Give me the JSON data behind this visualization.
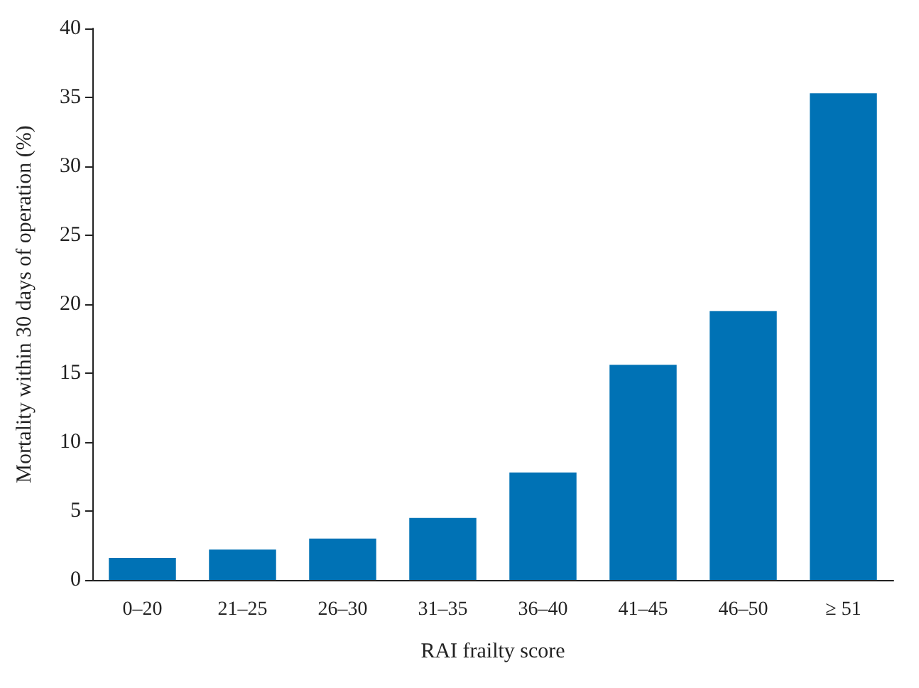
{
  "chart_data": {
    "type": "bar",
    "xlabel": "RAI frailty score",
    "ylabel": "Mortality within 30 days of operation (%)",
    "categories": [
      "0–20",
      "21–25",
      "26–30",
      "31–35",
      "36–40",
      "41–45",
      "46–50",
      "≥ 51"
    ],
    "values": [
      1.6,
      2.2,
      3.0,
      4.5,
      7.8,
      15.6,
      19.5,
      35.3
    ],
    "color": "#0072b5",
    "ylim": [
      0,
      40
    ],
    "yticks": [
      0,
      5,
      10,
      15,
      20,
      25,
      30,
      35,
      40
    ],
    "grid": false
  }
}
